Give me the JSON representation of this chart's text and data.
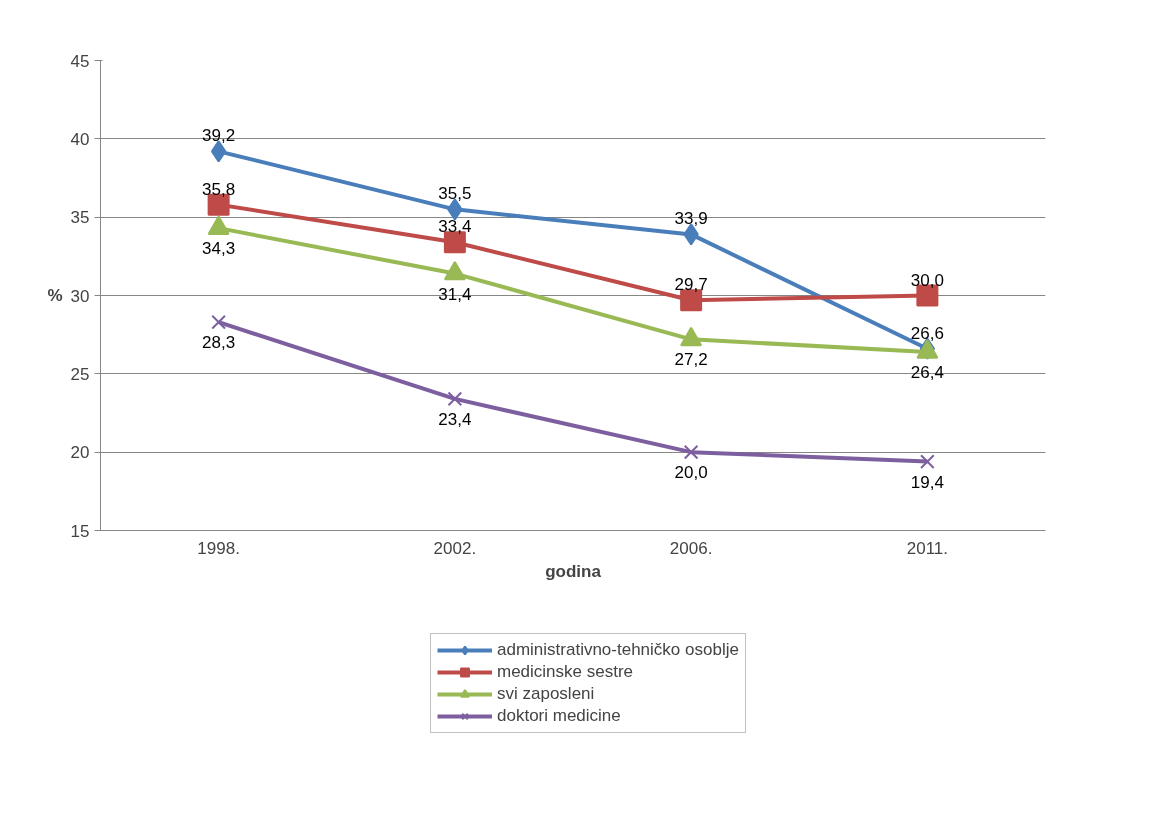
{
  "chart_data": {
    "type": "line",
    "xlabel": "godina",
    "ylabel": "%",
    "categories": [
      "1998.",
      "2002.",
      "2006.",
      "2011."
    ],
    "ylim": [
      15,
      45
    ],
    "yticks": [
      15,
      20,
      25,
      30,
      35,
      40,
      45
    ],
    "grid": "y",
    "legend": "bottom",
    "series": [
      {
        "name": "administrativno-tehničko osoblje",
        "color": "#4a7ebb",
        "marker": "diamond",
        "values": [
          39.2,
          35.5,
          33.9,
          26.6
        ],
        "value_labels": [
          "39,2",
          "35,5",
          "33,9",
          "26,6"
        ]
      },
      {
        "name": "medicinske sestre",
        "color": "#be4b48",
        "marker": "square",
        "values": [
          35.8,
          33.4,
          29.7,
          30.0
        ],
        "value_labels": [
          "35,8",
          "33,4",
          "29,7",
          "30,0"
        ]
      },
      {
        "name": "svi zaposleni",
        "color": "#98b954",
        "marker": "triangle",
        "values": [
          34.3,
          31.4,
          27.2,
          26.4
        ],
        "value_labels": [
          "34,3",
          "31,4",
          "27,2",
          "26,4"
        ]
      },
      {
        "name": "doktori medicine",
        "color": "#7d5fa0",
        "marker": "cross",
        "values": [
          28.3,
          23.4,
          20.0,
          19.4
        ],
        "value_labels": [
          "28,3",
          "23,4",
          "20,0",
          "19,4"
        ]
      }
    ]
  }
}
